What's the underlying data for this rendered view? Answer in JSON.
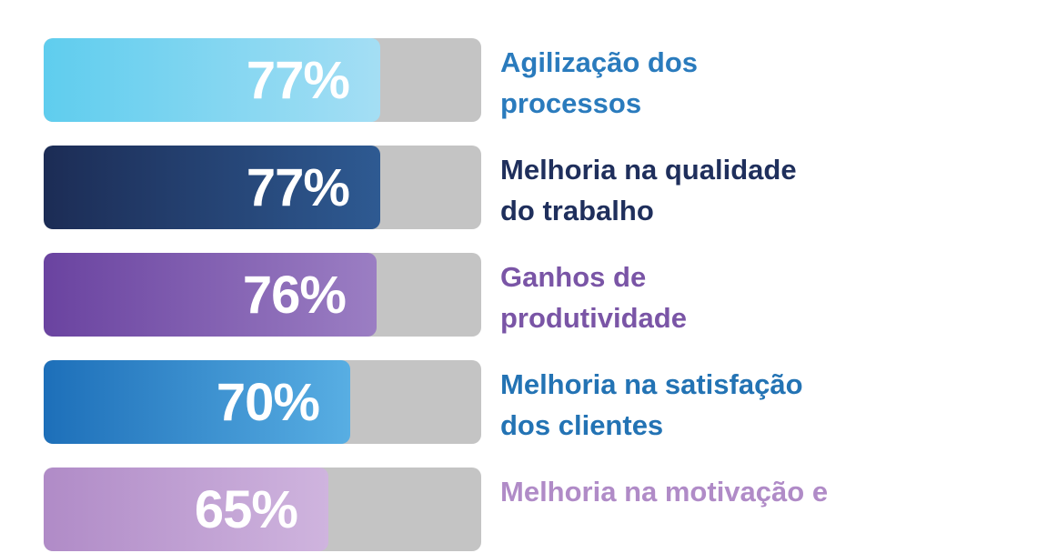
{
  "chart_data": {
    "type": "bar",
    "orientation": "horizontal",
    "ylim": [
      0,
      100
    ],
    "bars": [
      {
        "value": 77,
        "value_label": "77%",
        "label_lines": [
          "Agilização dos",
          "processos"
        ],
        "color_start": "#5fcdee",
        "color_end": "#a4def4",
        "label_color": "#2a7bbd"
      },
      {
        "value": 77,
        "value_label": "77%",
        "label_lines": [
          "Melhoria na qualidade",
          "do trabalho"
        ],
        "color_start": "#1c2c55",
        "color_end": "#2e5a92",
        "label_color": "#1f2f5c"
      },
      {
        "value": 76,
        "value_label": "76%",
        "label_lines": [
          "Ganhos de",
          "produtividade"
        ],
        "color_start": "#6a43a0",
        "color_end": "#9b7ec3",
        "label_color": "#7a55a6"
      },
      {
        "value": 70,
        "value_label": "70%",
        "label_lines": [
          "Melhoria na satisfação",
          "dos clientes"
        ],
        "color_start": "#1d6fb9",
        "color_end": "#58aee3",
        "label_color": "#2373b4"
      },
      {
        "value": 65,
        "value_label": "65%",
        "label_lines": [
          "Melhoria na motivação e",
          ""
        ],
        "color_start": "#b08bc7",
        "color_end": "#cfb4de",
        "label_color": "#b08bc7"
      }
    ]
  }
}
